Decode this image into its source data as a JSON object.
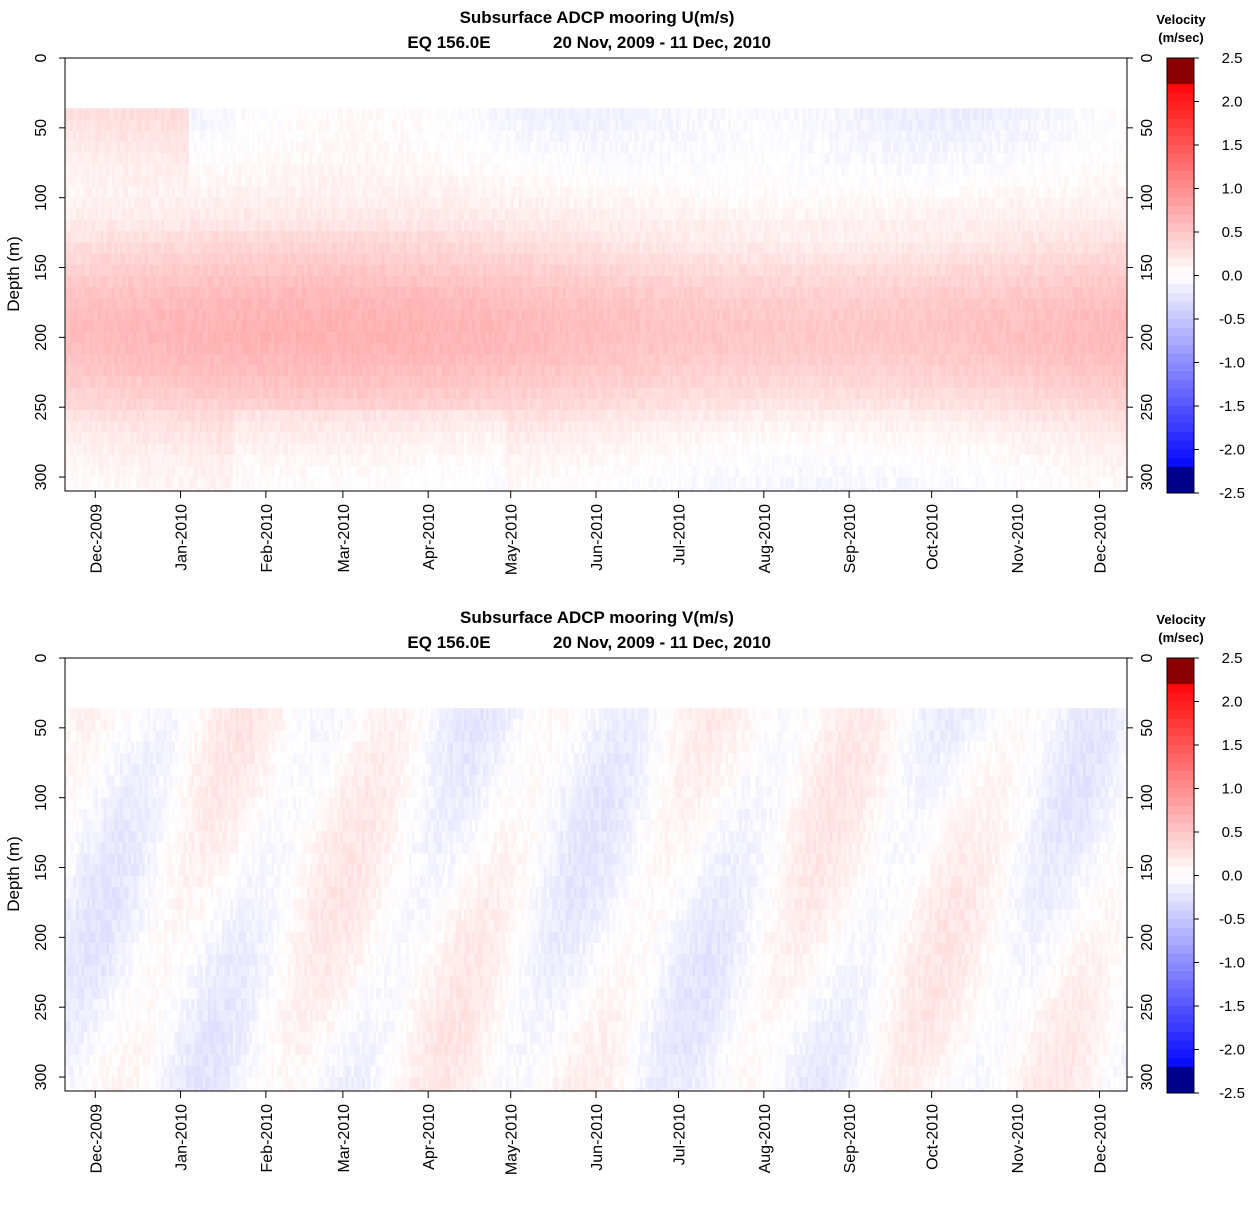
{
  "chart_data": [
    {
      "type": "heatmap",
      "title": "Subsurface ADCP mooring U(m/s)",
      "subtitle_site": "EQ 156.0E",
      "subtitle_period": "20 Nov, 2009 - 11 Dec, 2010",
      "ylabel": "Depth (m)",
      "ylim": [
        310,
        0
      ],
      "y_ticks": [
        "0",
        "50",
        "100",
        "150",
        "200",
        "250",
        "300"
      ],
      "x_ticks": [
        "Dec-2009",
        "Jan-2010",
        "Feb-2010",
        "Mar-2010",
        "Apr-2010",
        "May-2010",
        "Jun-2010",
        "Jul-2010",
        "Aug-2010",
        "Sep-2010",
        "Oct-2010",
        "Nov-2010",
        "Dec-2010"
      ],
      "colorbar_title_1": "Velocity",
      "colorbar_title_2": "(m/sec)",
      "colorbar_ticks": [
        "2.5",
        "2.0",
        "1.5",
        "1.0",
        "0.5",
        "0.0",
        "-0.5",
        "-1.0",
        "-1.5",
        "-2.0",
        "-2.5"
      ],
      "colorbar_range": [
        -2.5,
        2.5
      ],
      "data_top_depth": 36,
      "data_bottom_depth": 310,
      "x_range_days": [
        0,
        386
      ],
      "field": "U",
      "description_of_pattern": "eastward undercurrent core 150-250 m, weak westward surface flow"
    },
    {
      "type": "heatmap",
      "title": "Subsurface ADCP mooring V(m/s)",
      "subtitle_site": "EQ 156.0E",
      "subtitle_period": "20 Nov, 2009 - 11 Dec, 2010",
      "ylabel": "Depth (m)",
      "ylim": [
        310,
        0
      ],
      "y_ticks": [
        "0",
        "50",
        "100",
        "150",
        "200",
        "250",
        "300"
      ],
      "x_ticks": [
        "Dec-2009",
        "Jan-2010",
        "Feb-2010",
        "Mar-2010",
        "Apr-2010",
        "May-2010",
        "Jun-2010",
        "Jul-2010",
        "Aug-2010",
        "Sep-2010",
        "Oct-2010",
        "Nov-2010",
        "Dec-2010"
      ],
      "colorbar_title_1": "Velocity",
      "colorbar_title_2": "(m/sec)",
      "colorbar_ticks": [
        "2.5",
        "2.0",
        "1.5",
        "1.0",
        "0.5",
        "0.0",
        "-0.5",
        "-1.0",
        "-1.5",
        "-2.0",
        "-2.5"
      ],
      "colorbar_range": [
        -2.5,
        2.5
      ],
      "data_top_depth": 36,
      "data_bottom_depth": 310,
      "x_range_days": [
        0,
        386
      ],
      "field": "V",
      "description_of_pattern": "weak alternating meridional flow near zero"
    }
  ],
  "colors": {
    "neg_max": "#00008b",
    "neg": "#0000ff",
    "zero": "#ffffff",
    "pos": "#ff0000",
    "pos_max": "#8b0000"
  }
}
